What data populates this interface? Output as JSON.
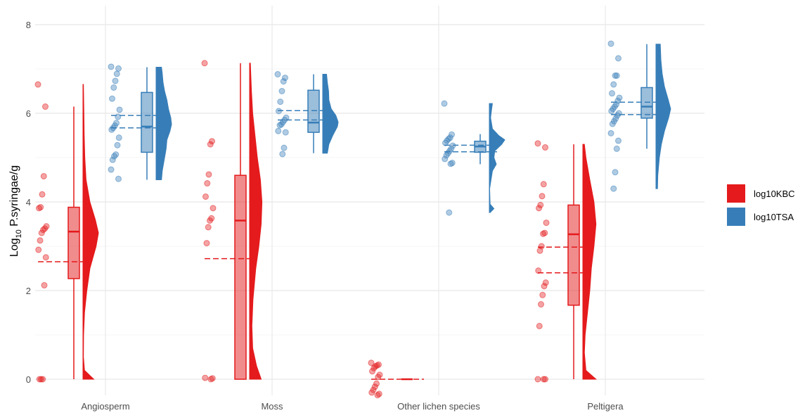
{
  "chart_data": {
    "type": "raincloud",
    "title": "",
    "xlabel": "",
    "ylabel_main": "Log",
    "ylabel_sub": "10",
    "ylabel_tail": " P.syringae/g",
    "ylim": [
      0,
      8
    ],
    "yticks": [
      "0",
      "2",
      "4",
      "6",
      "8"
    ],
    "grid": true,
    "legend_position": "right",
    "categories": [
      "Angiosperm",
      "Moss",
      "Other lichen species",
      "Peltigera"
    ],
    "series": [
      {
        "name": "log10KBC",
        "color": "#e41a1c",
        "groups": [
          {
            "category": "Angiosperm",
            "box": {
              "q1": 2.27,
              "median": 3.33,
              "q3": 3.88,
              "whisker_low": 0,
              "whisker_high": 6.15
            },
            "mean": 2.65,
            "points": [
              6.65,
              6.15,
              4.58,
              4.17,
              3.88,
              3.86,
              3.45,
              3.4,
              3.37,
              3.3,
              3.13,
              2.92,
              2.75,
              2.12,
              0,
              0,
              0
            ],
            "density": [
              [
                0,
                0.7
              ],
              [
                0.2,
                0.1
              ],
              [
                0.5,
                0.03
              ],
              [
                1.0,
                0.04
              ],
              [
                1.5,
                0.1
              ],
              [
                2.0,
                0.25
              ],
              [
                2.5,
                0.45
              ],
              [
                3.0,
                0.85
              ],
              [
                3.3,
                1.0
              ],
              [
                3.6,
                0.8
              ],
              [
                4.0,
                0.45
              ],
              [
                4.5,
                0.2
              ],
              [
                5.0,
                0.12
              ],
              [
                5.5,
                0.08
              ],
              [
                6.0,
                0.06
              ],
              [
                6.65,
                0.03
              ]
            ]
          },
          {
            "category": "Moss",
            "box": {
              "q1": 0,
              "median": 3.58,
              "q3": 4.6,
              "whisker_low": 0,
              "whisker_high": 7.13
            },
            "mean": 2.72,
            "points": [
              7.13,
              5.37,
              5.3,
              4.62,
              4.42,
              4.12,
              3.86,
              3.63,
              3.58,
              3.43,
              3.07,
              0.03,
              0.02,
              0
            ],
            "density": [
              [
                0,
                0.75
              ],
              [
                0.3,
                0.45
              ],
              [
                0.7,
                0.2
              ],
              [
                1.2,
                0.15
              ],
              [
                1.8,
                0.22
              ],
              [
                2.5,
                0.4
              ],
              [
                3.0,
                0.6
              ],
              [
                3.5,
                0.75
              ],
              [
                4.0,
                0.8
              ],
              [
                4.5,
                0.7
              ],
              [
                5.0,
                0.5
              ],
              [
                5.5,
                0.35
              ],
              [
                6.0,
                0.2
              ],
              [
                6.5,
                0.12
              ],
              [
                7.13,
                0.05
              ]
            ]
          },
          {
            "category": "Other lichen species",
            "box": {
              "q1": 0,
              "median": 0,
              "q3": 0,
              "whisker_low": 0,
              "whisker_high": 0
            },
            "mean": 0,
            "points": [
              0.37,
              0.33,
              0.31,
              0.29,
              0.25,
              0.18,
              0.1,
              0.05,
              -0.1,
              -0.17,
              -0.24,
              -0.3,
              -0.33,
              -0.36
            ],
            "density": []
          },
          {
            "category": "Peltigera",
            "box": {
              "q1": 1.67,
              "median": 3.27,
              "q3": 3.93,
              "whisker_low": 0,
              "whisker_high": 5.3
            },
            "mean": 2.98,
            "mean2": 2.4,
            "points": [
              5.32,
              5.23,
              4.4,
              4.13,
              3.93,
              3.86,
              3.53,
              3.3,
              3.28,
              3.0,
              2.9,
              2.45,
              2.18,
              2.1,
              1.9,
              1.69,
              1.2,
              0,
              0,
              0
            ],
            "density": [
              [
                0,
                0.85
              ],
              [
                0.2,
                0.2
              ],
              [
                0.6,
                0.1
              ],
              [
                1.0,
                0.15
              ],
              [
                1.5,
                0.3
              ],
              [
                2.0,
                0.45
              ],
              [
                2.5,
                0.55
              ],
              [
                3.0,
                0.72
              ],
              [
                3.5,
                0.85
              ],
              [
                4.0,
                0.72
              ],
              [
                4.5,
                0.45
              ],
              [
                5.0,
                0.2
              ],
              [
                5.3,
                0.1
              ]
            ]
          }
        ]
      },
      {
        "name": "log10TSA",
        "color": "#377eb8",
        "groups": [
          {
            "category": "Angiosperm",
            "box": {
              "q1": 5.12,
              "median": 5.7,
              "q3": 6.47,
              "whisker_low": 4.5,
              "whisker_high": 7.04
            },
            "mean": 5.95,
            "mean2": 5.67,
            "points": [
              7.05,
              7.01,
              6.89,
              6.73,
              6.58,
              6.33,
              6.08,
              5.92,
              5.78,
              5.72,
              5.67,
              5.63,
              5.45,
              5.28,
              5.07,
              5.03,
              4.95,
              4.73,
              4.52
            ],
            "density": [
              [
                4.5,
                0.35
              ],
              [
                4.7,
                0.4
              ],
              [
                5.0,
                0.55
              ],
              [
                5.2,
                0.65
              ],
              [
                5.4,
                0.7
              ],
              [
                5.6,
                0.9
              ],
              [
                5.75,
                1.0
              ],
              [
                5.9,
                0.95
              ],
              [
                6.1,
                0.8
              ],
              [
                6.3,
                0.7
              ],
              [
                6.5,
                0.55
              ],
              [
                6.7,
                0.45
              ],
              [
                6.9,
                0.4
              ],
              [
                7.04,
                0.35
              ]
            ]
          },
          {
            "category": "Moss",
            "box": {
              "q1": 5.57,
              "median": 5.79,
              "q3": 6.52,
              "whisker_low": 5.1,
              "whisker_high": 6.88
            },
            "mean": 6.06,
            "mean2": 5.85,
            "points": [
              6.88,
              6.8,
              6.72,
              6.5,
              6.26,
              6.05,
              5.9,
              5.85,
              5.8,
              5.75,
              5.73,
              5.6,
              5.57,
              5.22,
              5.08
            ],
            "density": [
              [
                5.1,
                0.3
              ],
              [
                5.3,
                0.4
              ],
              [
                5.5,
                0.65
              ],
              [
                5.7,
                0.95
              ],
              [
                5.8,
                1.0
              ],
              [
                5.95,
                0.85
              ],
              [
                6.1,
                0.55
              ],
              [
                6.3,
                0.4
              ],
              [
                6.5,
                0.38
              ],
              [
                6.7,
                0.3
              ],
              [
                6.88,
                0.25
              ]
            ]
          },
          {
            "category": "Other lichen species",
            "box": {
              "q1": 5.12,
              "median": 5.25,
              "q3": 5.37,
              "whisker_low": 4.85,
              "whisker_high": 5.53
            },
            "mean": 5.28,
            "mean2": 5.13,
            "points": [
              6.22,
              5.52,
              5.45,
              5.42,
              5.38,
              5.33,
              5.27,
              5.2,
              5.15,
              5.1,
              5.05,
              4.97,
              4.88,
              4.86,
              3.76
            ],
            "density": [
              [
                3.76,
                0.05
              ],
              [
                3.85,
                0.3
              ],
              [
                3.95,
                0.05
              ],
              [
                4.3,
                0.02
              ],
              [
                4.7,
                0.2
              ],
              [
                4.85,
                0.45
              ],
              [
                5.0,
                0.3
              ],
              [
                5.15,
                0.35
              ],
              [
                5.3,
                0.8
              ],
              [
                5.4,
                1.0
              ],
              [
                5.5,
                0.6
              ],
              [
                5.65,
                0.2
              ],
              [
                5.9,
                0.08
              ],
              [
                6.1,
                0.15
              ],
              [
                6.22,
                0.2
              ]
            ]
          },
          {
            "category": "Peltigera",
            "box": {
              "q1": 5.89,
              "median": 6.15,
              "q3": 6.58,
              "whisker_low": 5.2,
              "whisker_high": 7.56
            },
            "mean": 6.25,
            "mean2": 5.97,
            "points": [
              7.57,
              7.24,
              6.85,
              6.85,
              6.65,
              6.45,
              6.35,
              6.28,
              6.2,
              6.15,
              6.1,
              6.05,
              6.0,
              5.95,
              5.88,
              5.82,
              5.76,
              5.55,
              5.38,
              5.2,
              4.67,
              4.3
            ],
            "density": [
              [
                4.3,
                0.1
              ],
              [
                4.6,
                0.12
              ],
              [
                5.0,
                0.22
              ],
              [
                5.3,
                0.35
              ],
              [
                5.6,
                0.55
              ],
              [
                5.9,
                0.82
              ],
              [
                6.1,
                0.95
              ],
              [
                6.3,
                0.8
              ],
              [
                6.6,
                0.55
              ],
              [
                6.9,
                0.4
              ],
              [
                7.2,
                0.32
              ],
              [
                7.56,
                0.28
              ]
            ]
          }
        ]
      }
    ]
  }
}
